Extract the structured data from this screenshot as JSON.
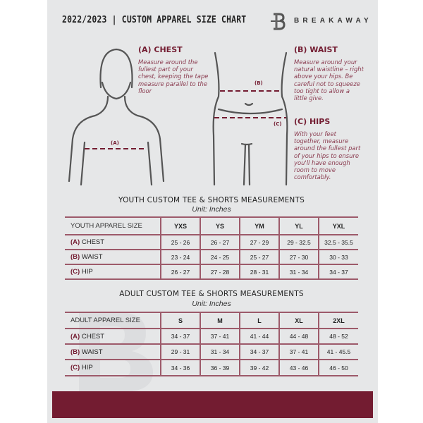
{
  "header": {
    "title": "2022/2023 | CUSTOM APPAREL SIZE CHART",
    "brand": "BREAKAWAY"
  },
  "measurements": {
    "chest": {
      "heading": "(A) CHEST",
      "text": "Measure around the fullest part of your chest, keeping the tape measure parallel to the floor",
      "marker": "(A)"
    },
    "waist": {
      "heading": "(B) WAIST",
      "text": "Measure around your natural waistline – right above your hips. Be careful not to squeeze too tight to allow a little give.",
      "marker": "(B)"
    },
    "hips": {
      "heading": "(C) HIPS",
      "text": "With your feet together, measure around the fullest part of your hips to ensure you'll have enough room to move comfortably.",
      "marker": "(C)"
    }
  },
  "youth": {
    "title": "YOUTH CUSTOM TEE & SHORTS MEASUREMENTS",
    "unit": "Unit: Inches",
    "header": [
      "YOUTH APPAREL SIZE",
      "YXS",
      "YS",
      "YM",
      "YL",
      "YXL"
    ],
    "rows": [
      {
        "code": "(A)",
        "name": "CHEST",
        "values": [
          "25 - 26",
          "26 - 27",
          "27 - 29",
          "29 - 32.5",
          "32.5 - 35.5"
        ]
      },
      {
        "code": "(B)",
        "name": "WAIST",
        "values": [
          "23 - 24",
          "24 - 25",
          "25 - 27",
          "27 - 30",
          "30 - 33"
        ]
      },
      {
        "code": "(C)",
        "name": "HIP",
        "values": [
          "26 - 27",
          "27 - 28",
          "28 - 31",
          "31 - 34",
          "34 - 37"
        ]
      }
    ]
  },
  "adult": {
    "title": "ADULT CUSTOM TEE & SHORTS MEASUREMENTS",
    "unit": "Unit: Inches",
    "header": [
      "ADULT APPAREL SIZE",
      "S",
      "M",
      "L",
      "XL",
      "2XL"
    ],
    "rows": [
      {
        "code": "(A)",
        "name": "CHEST",
        "values": [
          "34 - 37",
          "37 - 41",
          "41 - 44",
          "44 - 48",
          "48 - 52"
        ]
      },
      {
        "code": "(B)",
        "name": "WAIST",
        "values": [
          "29 - 31",
          "31 - 34",
          "34 - 37",
          "37 - 41",
          "41 - 45.5"
        ]
      },
      {
        "code": "(C)",
        "name": "HIP",
        "values": [
          "34 - 36",
          "36 - 39",
          "39 - 42",
          "43 - 46",
          "46 - 50"
        ]
      }
    ]
  },
  "colors": {
    "accent": "#731c31",
    "background": "#e6e7e8"
  }
}
